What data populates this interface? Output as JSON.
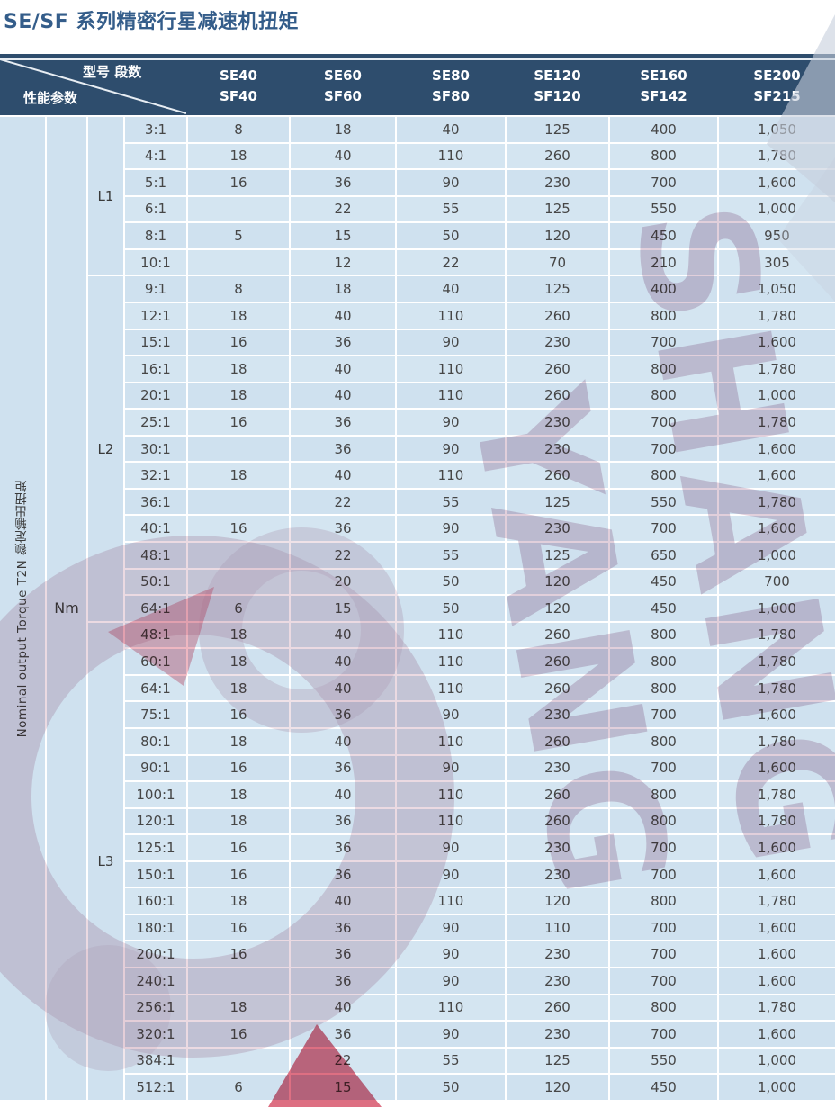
{
  "page_title": "SE/SF 系列精密行星减速机扭矩",
  "colors": {
    "header_bg": "#2e4d6d",
    "header_text": "#ffffff",
    "cell_bg": "#cfe1ef",
    "cell_alt_bg": "#d4e5f1",
    "title_text": "#345d8a",
    "body_text": "#464646",
    "gridline": "#ffffff",
    "watermark_pink": "#c9a8bd",
    "watermark_gray": "#c6cfdc",
    "watermark_red": "#d44b63"
  },
  "watermark": {
    "word1": "SHANG",
    "word2": "YANG"
  },
  "table": {
    "header": {
      "corner_top": "型号 段数",
      "corner_bottom": "性能参数",
      "columns": [
        [
          "SE40",
          "SF40"
        ],
        [
          "SE60",
          "SF60"
        ],
        [
          "SE80",
          "SF80"
        ],
        [
          "SE120",
          "SF120"
        ],
        [
          "SE160",
          "SF142"
        ],
        [
          "SE200",
          "SF215"
        ]
      ]
    },
    "left_label": "Nominal output Torque T2N 额定输出扭矩",
    "unit": "Nm",
    "groups": [
      {
        "label": "L1",
        "rows": [
          {
            "ratio": "3:1",
            "values": [
              "8",
              "18",
              "40",
              "125",
              "400",
              "1,050"
            ]
          },
          {
            "ratio": "4:1",
            "values": [
              "18",
              "40",
              "110",
              "260",
              "800",
              "1,780"
            ]
          },
          {
            "ratio": "5:1",
            "values": [
              "16",
              "36",
              "90",
              "230",
              "700",
              "1,600"
            ]
          },
          {
            "ratio": "6:1",
            "values": [
              "",
              "22",
              "55",
              "125",
              "550",
              "1,000"
            ]
          },
          {
            "ratio": "8:1",
            "values": [
              "5",
              "15",
              "50",
              "120",
              "450",
              "950"
            ]
          },
          {
            "ratio": "10:1",
            "values": [
              "",
              "12",
              "22",
              "70",
              "210",
              "305"
            ]
          }
        ]
      },
      {
        "label": "L2",
        "rows": [
          {
            "ratio": "9:1",
            "values": [
              "8",
              "18",
              "40",
              "125",
              "400",
              "1,050"
            ]
          },
          {
            "ratio": "12:1",
            "values": [
              "18",
              "40",
              "110",
              "260",
              "800",
              "1,780"
            ]
          },
          {
            "ratio": "15:1",
            "values": [
              "16",
              "36",
              "90",
              "230",
              "700",
              "1,600"
            ]
          },
          {
            "ratio": "16:1",
            "values": [
              "18",
              "40",
              "110",
              "260",
              "800",
              "1,780"
            ]
          },
          {
            "ratio": "20:1",
            "values": [
              "18",
              "40",
              "110",
              "260",
              "800",
              "1,000"
            ]
          },
          {
            "ratio": "25:1",
            "values": [
              "16",
              "36",
              "90",
              "230",
              "700",
              "1,780"
            ]
          },
          {
            "ratio": "30:1",
            "values": [
              "",
              "36",
              "90",
              "230",
              "700",
              "1,600"
            ]
          },
          {
            "ratio": "32:1",
            "values": [
              "18",
              "40",
              "110",
              "260",
              "800",
              "1,600"
            ]
          },
          {
            "ratio": "36:1",
            "values": [
              "",
              "22",
              "55",
              "125",
              "550",
              "1,780"
            ]
          },
          {
            "ratio": "40:1",
            "values": [
              "16",
              "36",
              "90",
              "230",
              "700",
              "1,600"
            ]
          },
          {
            "ratio": "48:1",
            "values": [
              "",
              "22",
              "55",
              "125",
              "650",
              "1,000"
            ]
          },
          {
            "ratio": "50:1",
            "values": [
              "",
              "20",
              "50",
              "120",
              "450",
              "700"
            ]
          },
          {
            "ratio": "64:1",
            "values": [
              "6",
              "15",
              "50",
              "120",
              "450",
              "1,000"
            ]
          }
        ]
      },
      {
        "label": "L3",
        "rows": [
          {
            "ratio": "48:1",
            "values": [
              "18",
              "40",
              "110",
              "260",
              "800",
              "1,780"
            ]
          },
          {
            "ratio": "60:1",
            "values": [
              "18",
              "40",
              "110",
              "260",
              "800",
              "1,780"
            ]
          },
          {
            "ratio": "64:1",
            "values": [
              "18",
              "40",
              "110",
              "260",
              "800",
              "1,780"
            ]
          },
          {
            "ratio": "75:1",
            "values": [
              "16",
              "36",
              "90",
              "230",
              "700",
              "1,600"
            ]
          },
          {
            "ratio": "80:1",
            "values": [
              "18",
              "40",
              "110",
              "260",
              "800",
              "1,780"
            ]
          },
          {
            "ratio": "90:1",
            "values": [
              "16",
              "36",
              "90",
              "230",
              "700",
              "1,600"
            ]
          },
          {
            "ratio": "100:1",
            "values": [
              "18",
              "40",
              "110",
              "260",
              "800",
              "1,780"
            ]
          },
          {
            "ratio": "120:1",
            "values": [
              "18",
              "36",
              "110",
              "260",
              "800",
              "1,780"
            ]
          },
          {
            "ratio": "125:1",
            "values": [
              "16",
              "36",
              "90",
              "230",
              "700",
              "1,600"
            ]
          },
          {
            "ratio": "150:1",
            "values": [
              "16",
              "36",
              "90",
              "230",
              "700",
              "1,600"
            ]
          },
          {
            "ratio": "160:1",
            "values": [
              "18",
              "40",
              "110",
              "120",
              "800",
              "1,780"
            ]
          },
          {
            "ratio": "180:1",
            "values": [
              "16",
              "36",
              "90",
              "110",
              "700",
              "1,600"
            ]
          },
          {
            "ratio": "200:1",
            "values": [
              "16",
              "36",
              "90",
              "230",
              "700",
              "1,600"
            ]
          },
          {
            "ratio": "240:1",
            "values": [
              "",
              "36",
              "90",
              "230",
              "700",
              "1,600"
            ]
          },
          {
            "ratio": "256:1",
            "values": [
              "18",
              "40",
              "110",
              "260",
              "800",
              "1,780"
            ]
          },
          {
            "ratio": "320:1",
            "values": [
              "16",
              "36",
              "90",
              "230",
              "700",
              "1,600"
            ]
          },
          {
            "ratio": "384:1",
            "values": [
              "",
              "22",
              "55",
              "125",
              "550",
              "1,000"
            ]
          },
          {
            "ratio": "512:1",
            "values": [
              "6",
              "15",
              "50",
              "120",
              "450",
              "1,000"
            ]
          }
        ]
      }
    ]
  }
}
